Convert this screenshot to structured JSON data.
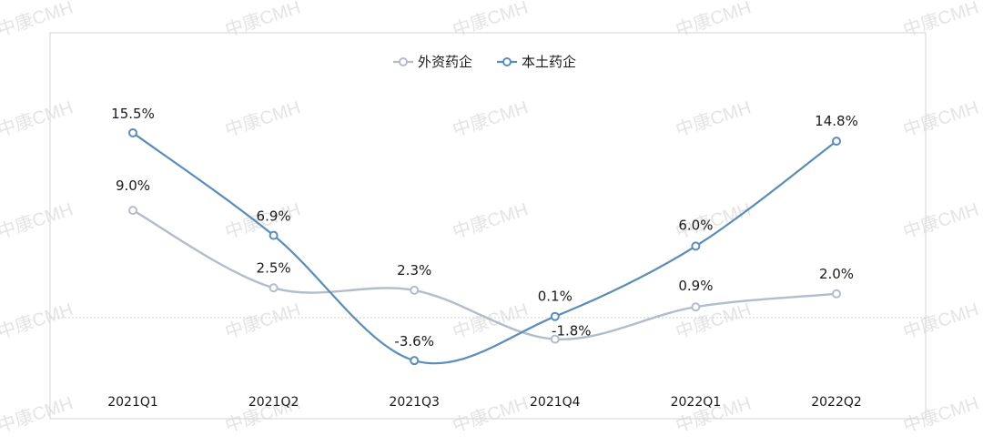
{
  "watermark": "中康CMH",
  "chart_data": {
    "type": "line",
    "categories": [
      "2021Q1",
      "2021Q2",
      "2021Q3",
      "2021Q4",
      "2022Q1",
      "2022Q2"
    ],
    "series": [
      {
        "name": "外资药企",
        "values": [
          9.0,
          2.5,
          2.3,
          -1.8,
          0.9,
          2.0
        ],
        "labels": [
          "9.0%",
          "2.5%",
          "2.3%",
          "-1.8%",
          "0.9%",
          "2.0%"
        ],
        "color": "#b4bccb"
      },
      {
        "name": "本土药企",
        "values": [
          15.5,
          6.9,
          -3.6,
          0.1,
          6.0,
          14.8
        ],
        "labels": [
          "15.5%",
          "6.9%",
          "-3.6%",
          "0.1%",
          "6.0%",
          "14.8%"
        ],
        "color": "#5b8db8"
      }
    ],
    "ylim": [
      -5,
      21
    ],
    "legend": "top-center",
    "grid": false,
    "smooth": true,
    "zero_line": "dotted"
  }
}
